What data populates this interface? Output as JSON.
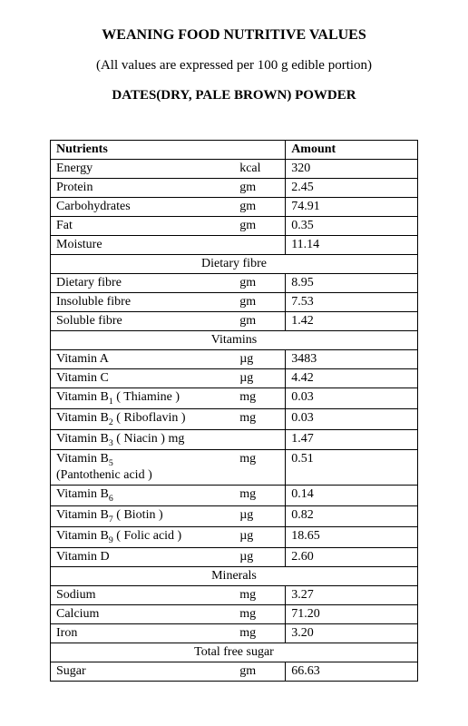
{
  "title": "WEANING FOOD NUTRITIVE VALUES",
  "subtitle": "(All values are expressed per 100 g edible portion)",
  "product": "DATES(DRY, PALE BROWN) POWDER",
  "headers": {
    "nutrients": "Nutrients",
    "amount": "Amount"
  },
  "sections": [
    {
      "header": null,
      "rows": [
        {
          "name": "Energy",
          "unit": "kcal",
          "amount": "320"
        },
        {
          "name": "Protein",
          "unit": "gm",
          "amount": "2.45"
        },
        {
          "name": "Carbohydrates",
          "unit": "gm",
          "amount": "74.91"
        },
        {
          "name": "Fat",
          "unit": "gm",
          "amount": "0.35"
        },
        {
          "name": "Moisture",
          "unit": "",
          "amount": "11.14"
        }
      ]
    },
    {
      "header": "Dietary fibre",
      "rows": [
        {
          "name": "Dietary fibre",
          "unit": "gm",
          "amount": "8.95"
        },
        {
          "name": "Insoluble fibre",
          "unit": "gm",
          "amount": "7.53"
        },
        {
          "name": "Soluble fibre",
          "unit": "gm",
          "amount": "1.42"
        }
      ]
    },
    {
      "header": "Vitamins",
      "rows": [
        {
          "name": "Vitamin A",
          "unit": "µg",
          "amount": "3483"
        },
        {
          "name": "Vitamin C",
          "unit": "µg",
          "amount": "4.42"
        },
        {
          "name": "Vitamin B",
          "sub": "1",
          "paren": " ( Thiamine )",
          "unit": "mg",
          "amount": "0.03"
        },
        {
          "name": "Vitamin B",
          "sub": "2",
          "paren": " ( Riboflavin )",
          "unit": "mg",
          "amount": "0.03"
        },
        {
          "name": "Vitamin B",
          "sub": "3",
          "paren": " ( Niacin ) mg",
          "unit": "",
          "amount": "1.47"
        },
        {
          "name": "Vitamin B",
          "sub": "5",
          "paren2": "(Pantothenic acid )",
          "unit": "mg",
          "amount": "0.51"
        },
        {
          "name": "Vitamin B",
          "sub": "6",
          "unit": "mg",
          "amount": "0.14"
        },
        {
          "name": "Vitamin B",
          "sub": "7",
          "paren": " ( Biotin )",
          "unit": "µg",
          "amount": "0.82"
        },
        {
          "name": "Vitamin B",
          "sub": "9",
          "paren": "  ( Folic acid )",
          "unit": "µg",
          "amount": "18.65"
        },
        {
          "name": "Vitamin D",
          "unit": "µg",
          "amount": "2.60"
        }
      ]
    },
    {
      "header": "Minerals",
      "rows": [
        {
          "name": "Sodium",
          "unit": "mg",
          "amount": "3.27"
        },
        {
          "name": "Calcium",
          "unit": "mg",
          "amount": "71.20"
        },
        {
          "name": "Iron",
          "unit": "mg",
          "amount": "3.20"
        }
      ]
    },
    {
      "header": "Total free sugar",
      "rows": [
        {
          "name": "Sugar",
          "unit": "gm",
          "amount": "66.63"
        }
      ]
    }
  ],
  "style": {
    "font_family": "Times New Roman",
    "background_color": "#ffffff",
    "text_color": "#000000",
    "border_color": "#000000",
    "title_fontsize": 16,
    "subtitle_fontsize": 15,
    "table_fontsize": 14
  }
}
